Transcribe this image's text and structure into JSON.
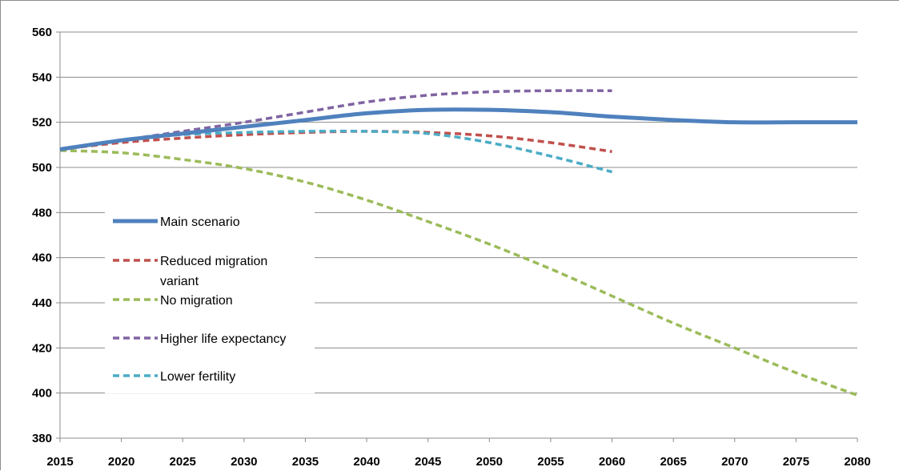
{
  "chart_data": {
    "type": "line",
    "title": "",
    "xlabel": "",
    "ylabel": "",
    "xlim": [
      2015,
      2080
    ],
    "ylim": [
      380,
      560
    ],
    "x_ticks": [
      "2015",
      "2020",
      "2025",
      "2030",
      "2035",
      "2040",
      "2045",
      "2050",
      "2055",
      "2060",
      "2065",
      "2070",
      "2075",
      "2080"
    ],
    "y_ticks": [
      "380",
      "400",
      "420",
      "440",
      "460",
      "480",
      "500",
      "520",
      "540",
      "560"
    ],
    "grid": "horizontal",
    "legend_position": "left-center",
    "series": [
      {
        "name": "Main scenario",
        "color": "#4f81bd",
        "style": "solid",
        "x": [
          2015,
          2020,
          2025,
          2030,
          2035,
          2040,
          2045,
          2050,
          2055,
          2060,
          2065,
          2070,
          2075,
          2080
        ],
        "y": [
          508,
          512,
          515,
          518,
          521,
          524,
          525.5,
          525.5,
          524.5,
          522.5,
          521,
          520,
          520,
          520
        ]
      },
      {
        "name": "Reduced migration",
        "name_line2": "variant",
        "color": "#c0504d",
        "style": "dashed",
        "x": [
          2015,
          2020,
          2025,
          2030,
          2035,
          2040,
          2045,
          2050,
          2055,
          2060
        ],
        "y": [
          508,
          511,
          513,
          514.5,
          515.5,
          516,
          515.5,
          514,
          511,
          507
        ]
      },
      {
        "name": "No migration",
        "color": "#9bbb59",
        "style": "dashed",
        "x": [
          2015,
          2020,
          2025,
          2030,
          2035,
          2040,
          2045,
          2050,
          2055,
          2060,
          2065,
          2070,
          2075,
          2080
        ],
        "y": [
          507.5,
          506.5,
          503.5,
          499.5,
          493.5,
          485.5,
          476,
          466,
          455,
          443,
          431,
          420,
          409,
          399
        ]
      },
      {
        "name": "Higher life expectancy",
        "color": "#8064a2",
        "style": "dashed",
        "x": [
          2015,
          2020,
          2025,
          2030,
          2035,
          2040,
          2045,
          2050,
          2055,
          2060
        ],
        "y": [
          508,
          512,
          516,
          520,
          524.5,
          529,
          532,
          533.5,
          534,
          534
        ]
      },
      {
        "name": "Lower fertility",
        "color": "#4bacc6",
        "style": "dashed",
        "x": [
          2015,
          2020,
          2025,
          2030,
          2035,
          2040,
          2045,
          2050,
          2055,
          2060
        ],
        "y": [
          508,
          512,
          514.5,
          515.5,
          516,
          516,
          515,
          511,
          505,
          498
        ]
      }
    ]
  }
}
